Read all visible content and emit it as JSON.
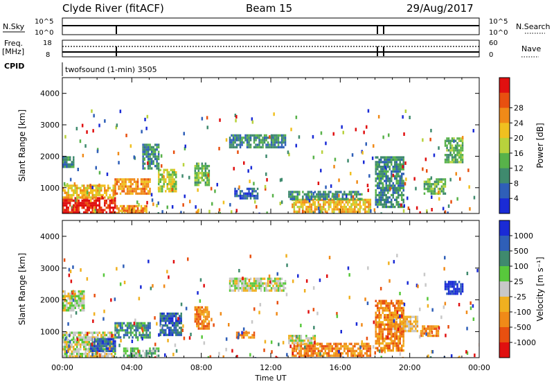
{
  "header": {
    "station": "Clyde River (fitACF)",
    "beam": "Beam 15",
    "date": "29/Aug/2017"
  },
  "strip_labels": {
    "nsky": "N.Sky",
    "nsearch": "N.Search",
    "freq": "Freq.",
    "mhz": "[MHz]",
    "nave": "Nave",
    "cpid": "CPID",
    "cpid_text": "twofsound (1-min) 3505",
    "nsky_ticks": [
      "10^5",
      "10^0"
    ],
    "nsearch_ticks": [
      "10^5",
      "10^0"
    ],
    "freq_ticks": [
      "18",
      "8"
    ],
    "nave_ticks": [
      "60",
      "0"
    ]
  },
  "chart_data": [
    {
      "type": "heatmap",
      "name": "power-panel",
      "ylabel": "Slant Range [km]",
      "ylim": [
        180,
        4500
      ],
      "xlim": [
        0,
        24
      ],
      "yticks": [
        "1000",
        "2000",
        "3000",
        "4000"
      ],
      "colorbar_label": "Power [dB]",
      "colorbar_ticks": [
        "4",
        "8",
        "12",
        "16",
        "20",
        "24",
        "28"
      ],
      "colorbar_colors": [
        "#1a2bd6",
        "#2f5fb8",
        "#3f8a6e",
        "#58b24a",
        "#b8d23c",
        "#f0c020",
        "#f08a18",
        "#e85010",
        "#e01010"
      ],
      "regions": [
        {
          "t0": 0.0,
          "t1": 3.0,
          "r0": 200,
          "r1": 700,
          "level": 8
        },
        {
          "t0": 0.0,
          "t1": 3.0,
          "r0": 700,
          "r1": 1100,
          "level": 5
        },
        {
          "t0": 3.0,
          "t1": 5.0,
          "r0": 850,
          "r1": 1300,
          "level": 6
        },
        {
          "t0": 3.1,
          "t1": 4.8,
          "r0": 200,
          "r1": 450,
          "level": 6
        },
        {
          "t0": 5.5,
          "t1": 6.5,
          "r0": 900,
          "r1": 1600,
          "level": 4
        },
        {
          "t0": 7.6,
          "t1": 8.4,
          "r0": 1100,
          "r1": 1800,
          "level": 3
        },
        {
          "t0": 4.6,
          "t1": 5.5,
          "r0": 1600,
          "r1": 2400,
          "level": 2
        },
        {
          "t0": 9.6,
          "t1": 12.8,
          "r0": 2300,
          "r1": 2700,
          "level": 2
        },
        {
          "t0": 13.2,
          "t1": 17.7,
          "r0": 250,
          "r1": 650,
          "level": 5
        },
        {
          "t0": 13.0,
          "t1": 17.2,
          "r0": 650,
          "r1": 900,
          "level": 2
        },
        {
          "t0": 18.0,
          "t1": 19.6,
          "r0": 400,
          "r1": 2000,
          "level": 2
        },
        {
          "t0": 20.8,
          "t1": 22.0,
          "r0": 800,
          "r1": 1300,
          "level": 3
        },
        {
          "t0": 22.0,
          "t1": 23.0,
          "r0": 1800,
          "r1": 2600,
          "level": 3
        },
        {
          "t0": 0.0,
          "t1": 0.6,
          "r0": 1700,
          "r1": 2000,
          "level": 2
        },
        {
          "t0": 9.9,
          "t1": 11.2,
          "r0": 700,
          "r1": 1000,
          "level": 1
        }
      ]
    },
    {
      "type": "heatmap",
      "name": "velocity-panel",
      "ylabel": "Slant Range [km]",
      "ylim": [
        180,
        4500
      ],
      "xlim": [
        0,
        24
      ],
      "yticks": [
        "1000",
        "2000",
        "3000",
        "4000"
      ],
      "xticks": [
        "00:00",
        "04:00",
        "08:00",
        "12:00",
        "16:00",
        "20:00",
        "00:00"
      ],
      "xlabel": "Time UT",
      "colorbar_label": "Velocity [m s⁻¹]",
      "colorbar_ticks": [
        "1000",
        "500",
        "100",
        "25",
        "-25",
        "-100",
        "-500",
        "-1000"
      ],
      "colorbar_colors": [
        "#1a2bd6",
        "#2f5fb8",
        "#3f8a6e",
        "#58c83c",
        "#c8c8c8",
        "#f0b020",
        "#f08a18",
        "#e85010",
        "#e01010"
      ],
      "regions": [
        {
          "t0": 0.0,
          "t1": 3.0,
          "r0": 200,
          "r1": 1000,
          "level": 4
        },
        {
          "t0": 1.6,
          "t1": 3.0,
          "r0": 400,
          "r1": 800,
          "level": 1
        },
        {
          "t0": 3.0,
          "t1": 5.0,
          "r0": 800,
          "r1": 1300,
          "level": 2
        },
        {
          "t0": 3.5,
          "t1": 5.5,
          "r0": 200,
          "r1": 500,
          "level": 3
        },
        {
          "t0": 5.6,
          "t1": 6.8,
          "r0": 900,
          "r1": 1600,
          "level": 1
        },
        {
          "t0": 7.6,
          "t1": 8.4,
          "r0": 1100,
          "r1": 1800,
          "level": 6
        },
        {
          "t0": 0.0,
          "t1": 1.2,
          "r0": 1700,
          "r1": 2300,
          "level": 4
        },
        {
          "t0": 9.6,
          "t1": 12.8,
          "r0": 2300,
          "r1": 2700,
          "level": 4
        },
        {
          "t0": 13.2,
          "t1": 17.7,
          "r0": 250,
          "r1": 650,
          "level": 6
        },
        {
          "t0": 13.0,
          "t1": 14.5,
          "r0": 650,
          "r1": 900,
          "level": 4
        },
        {
          "t0": 10.0,
          "t1": 11.0,
          "r0": 800,
          "r1": 1000,
          "level": 6
        },
        {
          "t0": 18.0,
          "t1": 19.6,
          "r0": 400,
          "r1": 2000,
          "level": 6
        },
        {
          "t0": 20.6,
          "t1": 21.6,
          "r0": 900,
          "r1": 1200,
          "level": 6
        },
        {
          "t0": 22.0,
          "t1": 23.0,
          "r0": 2200,
          "r1": 2600,
          "level": 0
        },
        {
          "t0": 19.0,
          "t1": 20.4,
          "r0": 1000,
          "r1": 1500,
          "level": 5
        }
      ]
    }
  ]
}
